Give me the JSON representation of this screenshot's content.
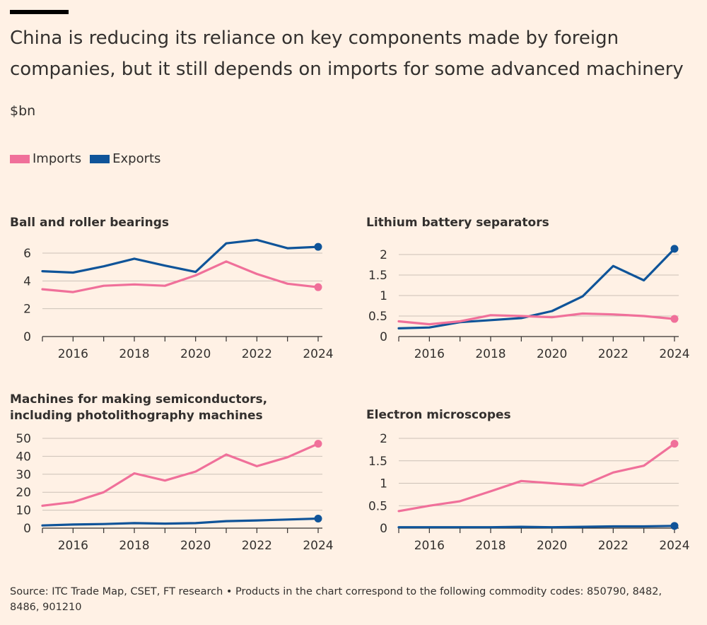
{
  "title": "China is reducing its reliance on key components made by foreign companies, but it still depends on imports for some advanced machinery",
  "units": "$bn",
  "legend": [
    {
      "label": "Imports",
      "color": "#F0709A"
    },
    {
      "label": "Exports",
      "color": "#0F5499"
    }
  ],
  "colors": {
    "imports": "#F0709A",
    "exports": "#0F5499",
    "grid": "#CCC1B7",
    "axis": "#33302E"
  },
  "chart_data": [
    {
      "type": "line",
      "title": "Ball and roller bearings",
      "x": [
        2015,
        2016,
        2017,
        2018,
        2019,
        2020,
        2021,
        2022,
        2023,
        2024
      ],
      "xticks": [
        2016,
        2018,
        2020,
        2022,
        2024
      ],
      "xlim": [
        2015,
        2024
      ],
      "yticks": [
        0,
        2,
        4,
        6
      ],
      "ytick_labels": [
        "0",
        "2",
        "4",
        "6"
      ],
      "ylim": [
        0,
        6.6
      ],
      "series": [
        {
          "name": "Imports",
          "values": [
            3.4,
            3.2,
            3.65,
            3.75,
            3.65,
            4.4,
            5.4,
            4.5,
            3.8,
            3.55
          ]
        },
        {
          "name": "Exports",
          "values": [
            4.7,
            4.6,
            5.05,
            5.6,
            5.1,
            4.65,
            6.7,
            6.95,
            6.35,
            6.45
          ]
        }
      ]
    },
    {
      "type": "line",
      "title": "Lithium battery separators",
      "x": [
        2015,
        2016,
        2017,
        2018,
        2019,
        2020,
        2021,
        2022,
        2023,
        2024
      ],
      "xticks": [
        2016,
        2018,
        2020,
        2022,
        2024
      ],
      "xlim": [
        2015,
        2024
      ],
      "yticks": [
        0,
        0.5,
        1,
        1.5,
        2
      ],
      "ytick_labels": [
        "0",
        "0.5",
        "1",
        "1.5",
        "2"
      ],
      "ylim": [
        0,
        2.2
      ],
      "series": [
        {
          "name": "Imports",
          "values": [
            0.37,
            0.3,
            0.37,
            0.52,
            0.5,
            0.47,
            0.56,
            0.54,
            0.5,
            0.43
          ]
        },
        {
          "name": "Exports",
          "values": [
            0.2,
            0.22,
            0.35,
            0.4,
            0.45,
            0.62,
            0.98,
            1.72,
            1.37,
            2.14
          ]
        }
      ]
    },
    {
      "type": "line",
      "title": "Machines for making semiconductors, including photolithography machines",
      "x": [
        2015,
        2016,
        2017,
        2018,
        2019,
        2020,
        2021,
        2022,
        2023,
        2024
      ],
      "xticks": [
        2016,
        2018,
        2020,
        2022,
        2024
      ],
      "xlim": [
        2015,
        2024
      ],
      "yticks": [
        0,
        10,
        20,
        30,
        40,
        50
      ],
      "ytick_labels": [
        "0",
        "10",
        "20",
        "30",
        "40",
        "50"
      ],
      "ylim": [
        0,
        52
      ],
      "series": [
        {
          "name": "Imports",
          "values": [
            12.5,
            14.5,
            20,
            30.5,
            26.5,
            31.5,
            41,
            34.5,
            39.5,
            47
          ]
        },
        {
          "name": "Exports",
          "values": [
            1.5,
            2,
            2.3,
            2.8,
            2.5,
            2.8,
            3.9,
            4.3,
            4.8,
            5.3
          ]
        }
      ]
    },
    {
      "type": "line",
      "title": "Electron microscopes",
      "x": [
        2015,
        2016,
        2017,
        2018,
        2019,
        2020,
        2021,
        2022,
        2023,
        2024
      ],
      "xticks": [
        2016,
        2018,
        2020,
        2022,
        2024
      ],
      "xlim": [
        2015,
        2024
      ],
      "yticks": [
        0,
        0.5,
        1,
        1.5,
        2
      ],
      "ytick_labels": [
        "0",
        "0.5",
        "1",
        "1.5",
        "2"
      ],
      "ylim": [
        0,
        2.08
      ],
      "series": [
        {
          "name": "Imports",
          "values": [
            0.38,
            0.5,
            0.6,
            0.82,
            1.05,
            1.0,
            0.95,
            1.24,
            1.39,
            1.88
          ]
        },
        {
          "name": "Exports",
          "values": [
            0.02,
            0.02,
            0.02,
            0.02,
            0.03,
            0.02,
            0.03,
            0.04,
            0.04,
            0.05
          ]
        }
      ]
    }
  ],
  "source": "Source: ITC Trade Map, CSET, FT research • Products in the chart correspond to the following commodity codes: 850790, 8482, 8486, 901210"
}
